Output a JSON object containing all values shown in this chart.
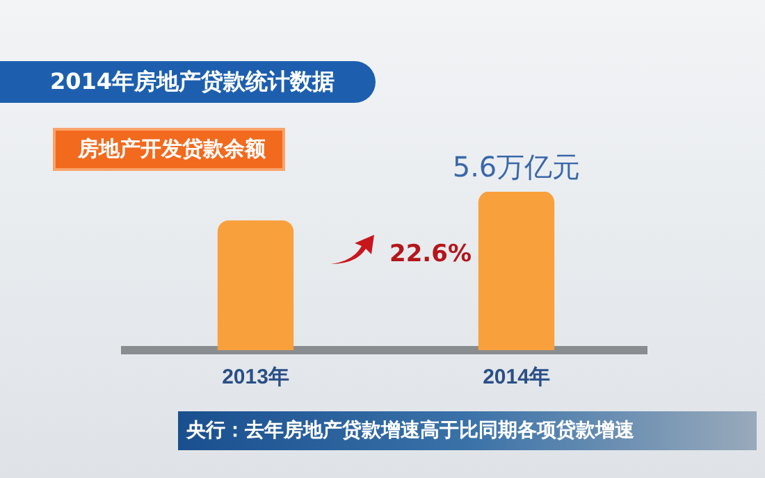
{
  "chart_data": {
    "type": "bar",
    "title": "2014年房地产贷款统计数据",
    "subtitle": "房地产开发贷款余额",
    "categories": [
      "2013年",
      "2014年"
    ],
    "values": [
      4.57,
      5.6
    ],
    "ylim": [
      0,
      5.6
    ],
    "tick_labels": "x",
    "value_labels": [
      null,
      "5.6万亿元"
    ],
    "color": "#f8a03c",
    "grid": false,
    "legend": false,
    "annotations": [
      "22.6%",
      "央行：去年房地产贷款增速高于比同期各项贷款增速"
    ]
  }
}
